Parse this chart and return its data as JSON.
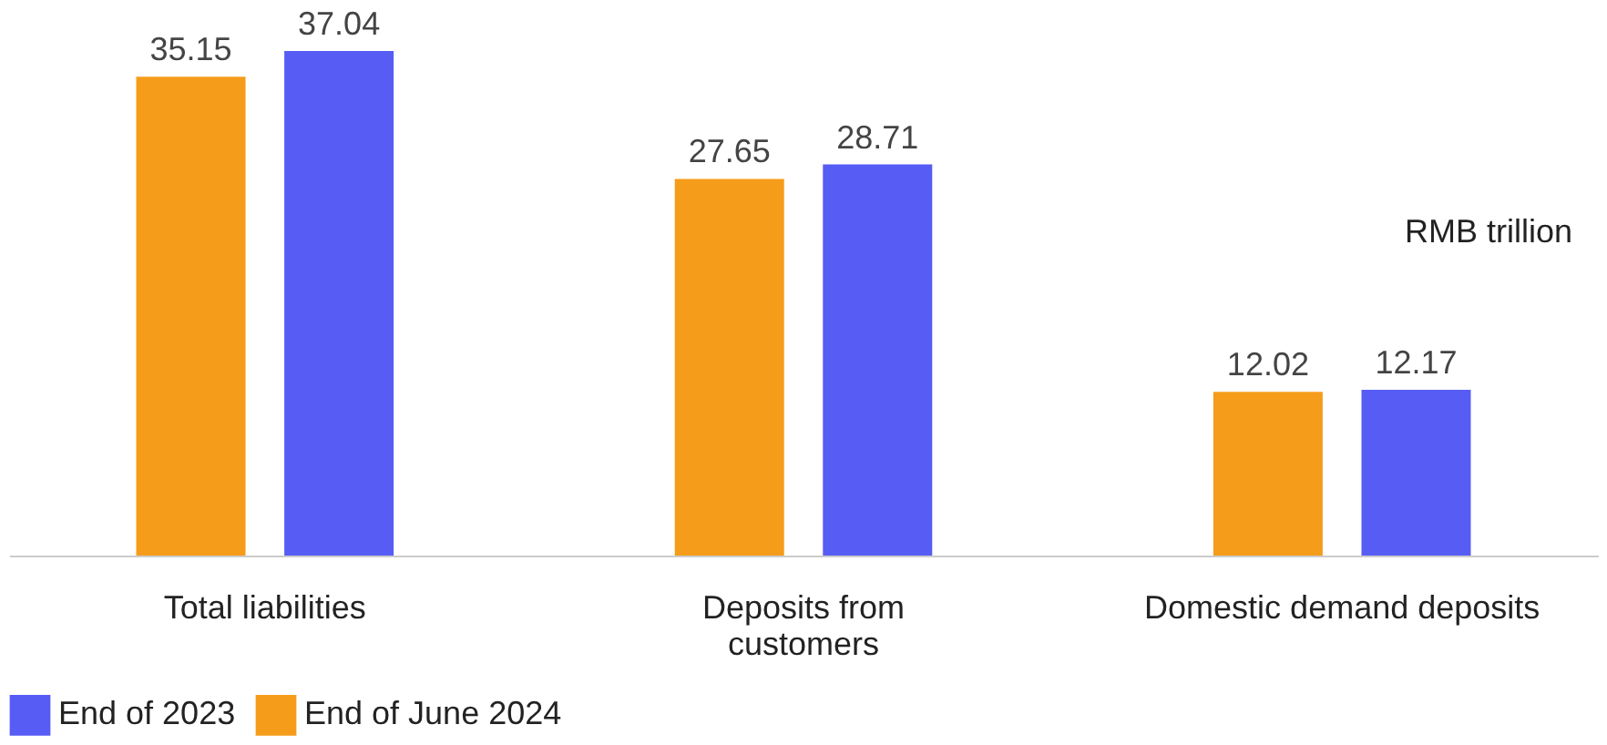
{
  "chart_data": {
    "type": "bar",
    "categories": [
      "Total liabilities",
      "Deposits from\ncustomers",
      "Domestic demand deposits"
    ],
    "series": [
      {
        "name": "End of 2023",
        "color": "#575cf5",
        "values": [
          37.04,
          28.71,
          12.17
        ]
      },
      {
        "name": "End of June 2024",
        "color": "#f59c1a",
        "values": [
          35.15,
          27.65,
          12.02
        ]
      }
    ],
    "data_labels": true,
    "legend": "bottom",
    "grid": false,
    "tick_labels": "x",
    "annotations": [
      "RMB trillion"
    ]
  }
}
